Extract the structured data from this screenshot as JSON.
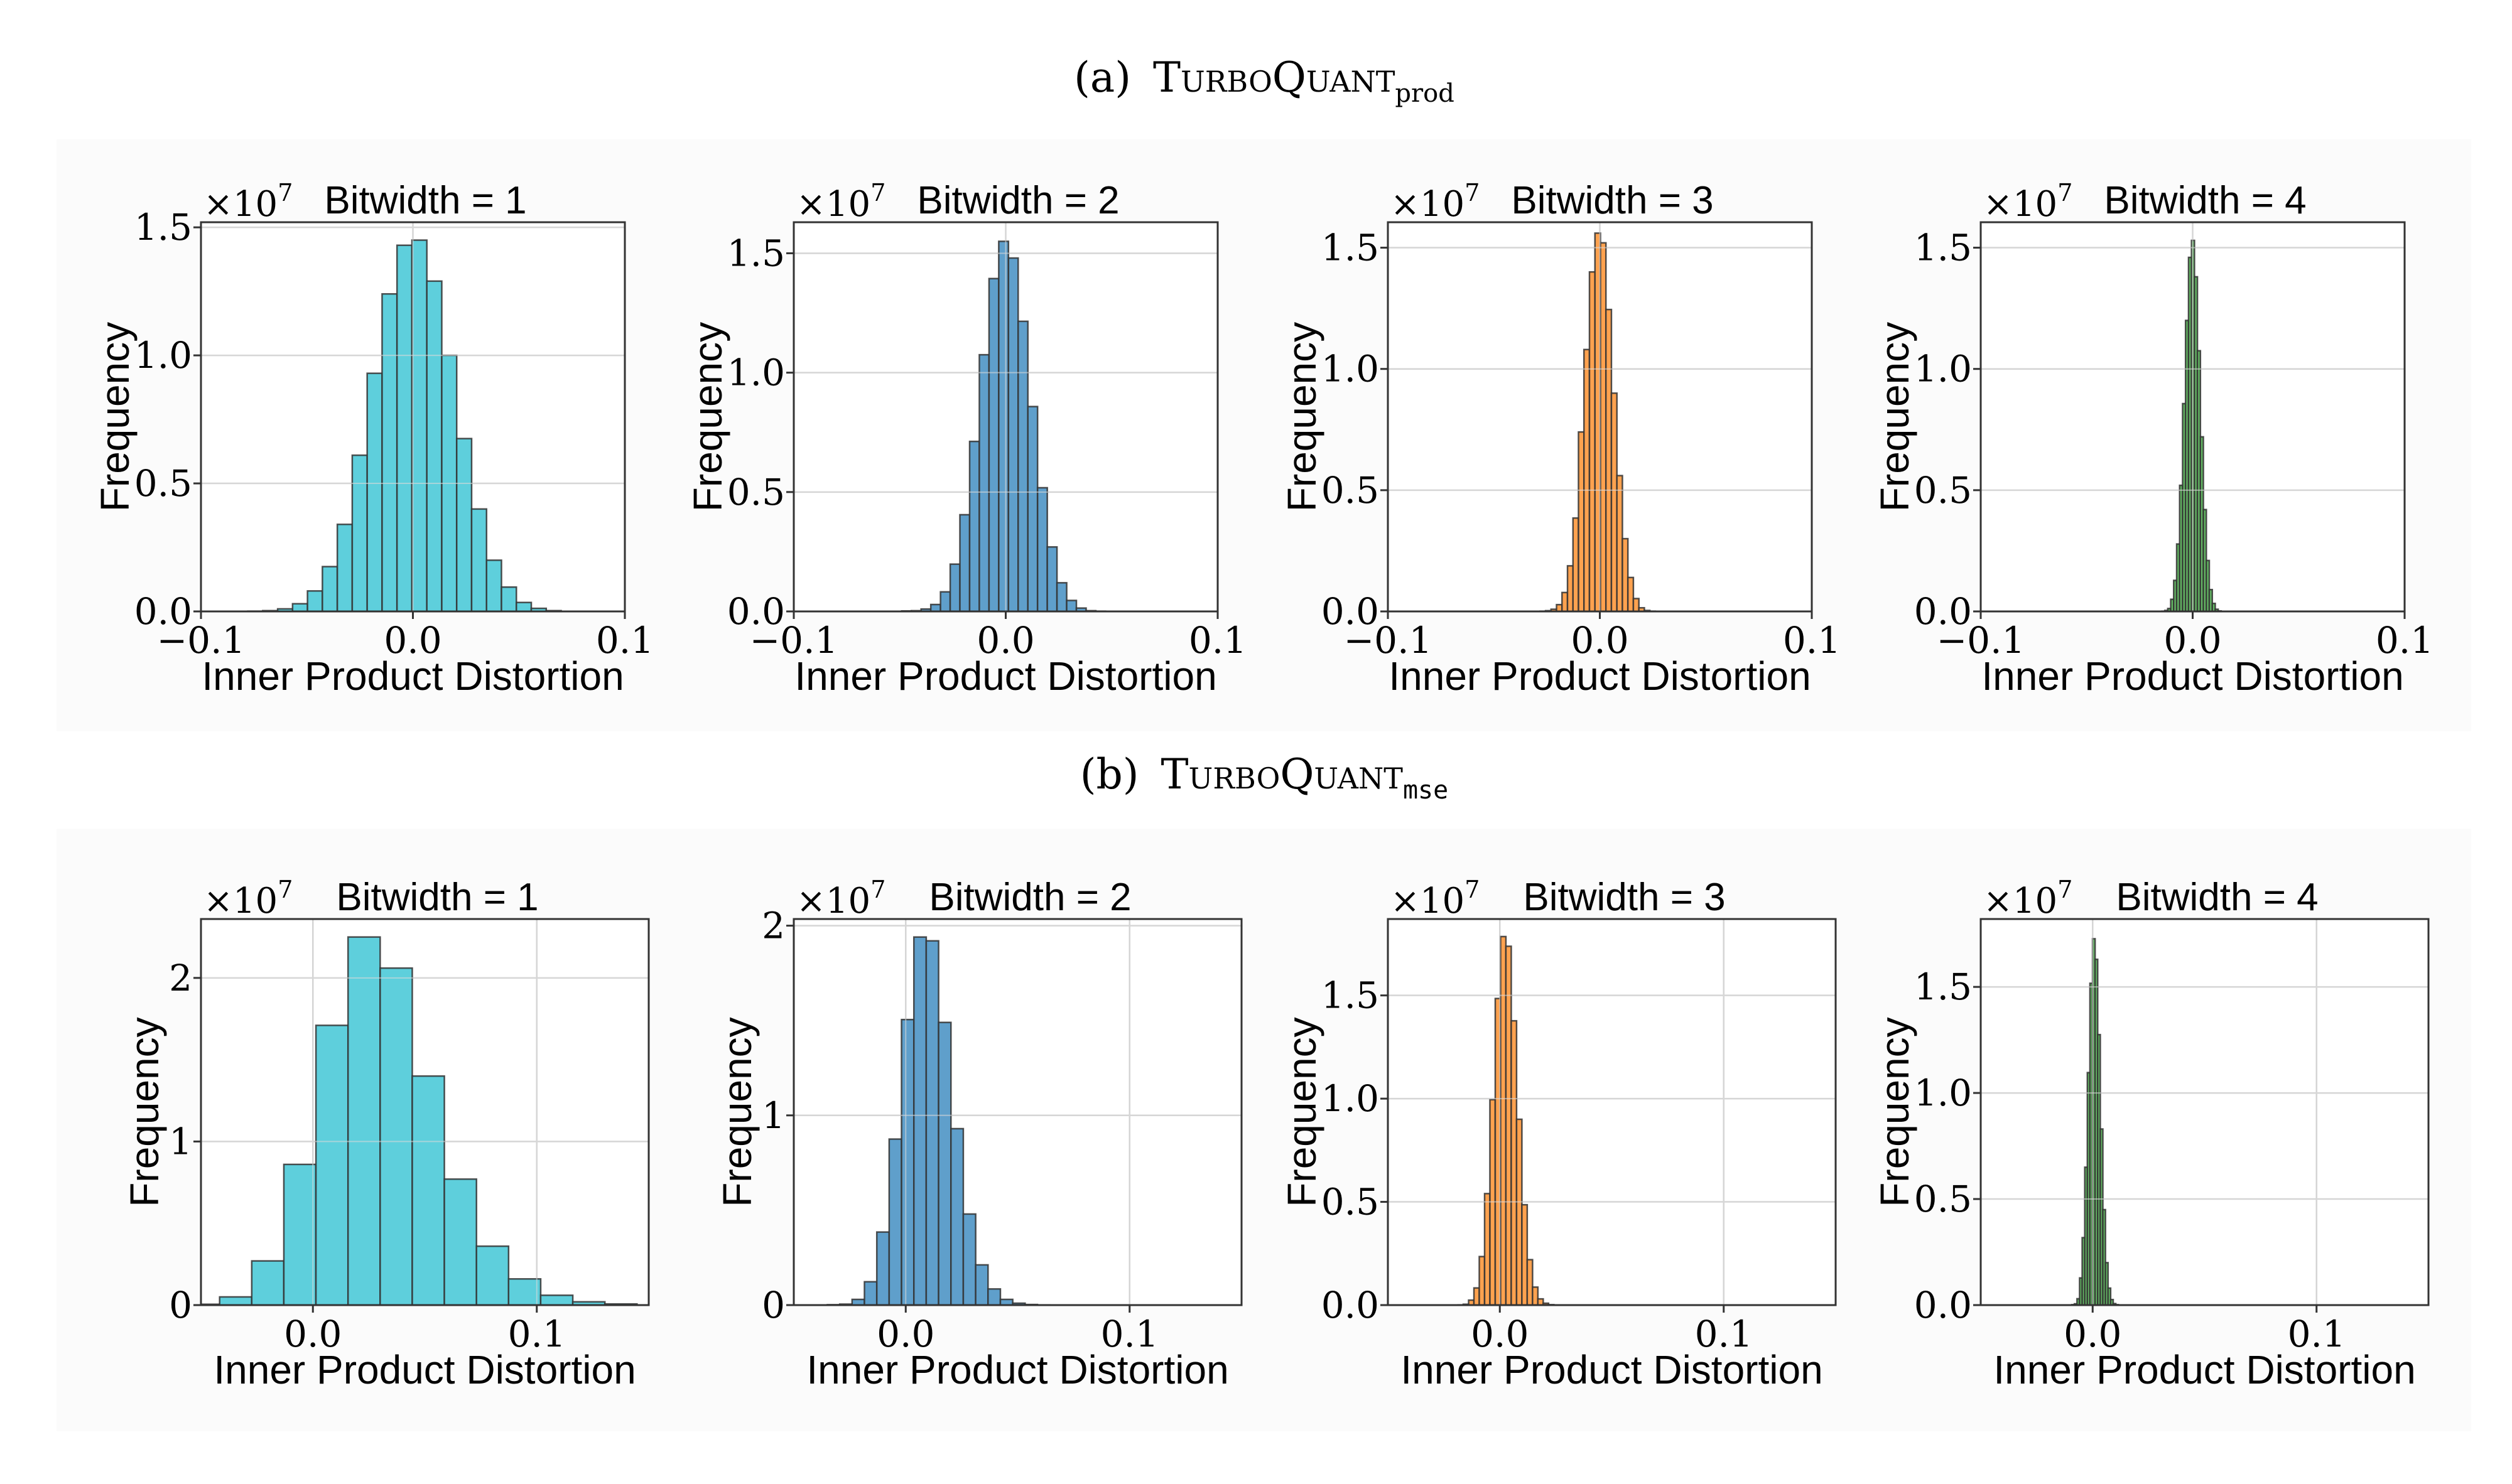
{
  "figure": {
    "sections": [
      {
        "label": "(a)",
        "name": "TurboQuant",
        "subscript": "prod"
      },
      {
        "label": "(b)",
        "name": "TurboQuant",
        "subscript": "mse"
      }
    ]
  },
  "colors": {
    "cyan": "#5ecfdc",
    "blue": "#5f9fcb",
    "orange": "#ffa24f",
    "green": "#66bb66",
    "grid": "#d2d2d2",
    "panel_bg": "#fbfbfb"
  },
  "chart_data": [
    {
      "type": "bar",
      "section": 0,
      "title": "Bitwidth = 1",
      "offset_base": "×10",
      "offset_exp": "7",
      "xlabel": "Inner Product Distortion",
      "ylabel": "Frequency",
      "color": "#5ecfdc",
      "xlim": [
        -0.1,
        0.1
      ],
      "ylim": [
        0,
        1.52
      ],
      "grid": true,
      "xticks": [
        {
          "v": -0.1,
          "label": "−0.1"
        },
        {
          "v": 0.0,
          "label": "0.0"
        },
        {
          "v": 0.1,
          "label": "0.1"
        }
      ],
      "yticks": [
        {
          "v": 0,
          "label": "0.0"
        },
        {
          "v": 0.5,
          "label": "0.5"
        },
        {
          "v": 1.0,
          "label": "1.0"
        },
        {
          "v": 1.5,
          "label": "1.5"
        }
      ],
      "bin_start": -0.0779,
      "bin_width": 0.00704,
      "values": [
        0.001,
        0.003,
        0.01,
        0.03,
        0.08,
        0.175,
        0.34,
        0.61,
        0.93,
        1.24,
        1.43,
        1.45,
        1.29,
        1.0,
        0.675,
        0.4,
        0.2,
        0.095,
        0.035,
        0.012,
        0.003
      ]
    },
    {
      "type": "bar",
      "section": 0,
      "title": "Bitwidth = 2",
      "offset_base": "×10",
      "offset_exp": "7",
      "xlabel": "Inner Product Distortion",
      "ylabel": "Frequency",
      "color": "#5f9fcb",
      "xlim": [
        -0.1,
        0.1
      ],
      "ylim": [
        0,
        1.63
      ],
      "grid": true,
      "xticks": [
        {
          "v": -0.1,
          "label": "−0.1"
        },
        {
          "v": 0.0,
          "label": "0.0"
        },
        {
          "v": 0.1,
          "label": "0.1"
        }
      ],
      "yticks": [
        {
          "v": 0,
          "label": "0.0"
        },
        {
          "v": 0.5,
          "label": "0.5"
        },
        {
          "v": 1.0,
          "label": "1.0"
        },
        {
          "v": 1.5,
          "label": "1.5"
        }
      ],
      "bin_start": -0.0491,
      "bin_width": 0.00458,
      "values": [
        0.002,
        0.003,
        0.01,
        0.029,
        0.082,
        0.198,
        0.405,
        0.712,
        1.075,
        1.394,
        1.55,
        1.48,
        1.215,
        0.858,
        0.518,
        0.27,
        0.12,
        0.046,
        0.014,
        0.003,
        0.001
      ]
    },
    {
      "type": "bar",
      "section": 0,
      "title": "Bitwidth = 3",
      "offset_base": "×10",
      "offset_exp": "7",
      "xlabel": "Inner Product Distortion",
      "ylabel": "Frequency",
      "color": "#ffa24f",
      "xlim": [
        -0.1,
        0.1
      ],
      "ylim": [
        0,
        1.605
      ],
      "grid": true,
      "xticks": [
        {
          "v": -0.1,
          "label": "−0.1"
        },
        {
          "v": 0.0,
          "label": "0.0"
        },
        {
          "v": 0.1,
          "label": "0.1"
        }
      ],
      "yticks": [
        {
          "v": 0,
          "label": "0.0"
        },
        {
          "v": 0.5,
          "label": "0.5"
        },
        {
          "v": 1.0,
          "label": "1.0"
        },
        {
          "v": 1.5,
          "label": "1.5"
        }
      ],
      "bin_start": -0.0282,
      "bin_width": 0.00259,
      "values": [
        0.001,
        0.003,
        0.009,
        0.028,
        0.078,
        0.188,
        0.385,
        0.74,
        1.08,
        1.4,
        1.56,
        1.52,
        1.245,
        0.9,
        0.56,
        0.3,
        0.14,
        0.053,
        0.015,
        0.004,
        0.001
      ]
    },
    {
      "type": "bar",
      "section": 0,
      "title": "Bitwidth = 4",
      "offset_base": "×10",
      "offset_exp": "7",
      "xlabel": "Inner Product Distortion",
      "ylabel": "Frequency",
      "color": "#66bb66",
      "xlim": [
        -0.1,
        0.1
      ],
      "ylim": [
        0,
        1.605
      ],
      "grid": true,
      "xticks": [
        {
          "v": -0.1,
          "label": "−0.1"
        },
        {
          "v": 0.0,
          "label": "0.0"
        },
        {
          "v": 0.1,
          "label": "0.1"
        }
      ],
      "yticks": [
        {
          "v": 0,
          "label": "0.0"
        },
        {
          "v": 0.5,
          "label": "0.5"
        },
        {
          "v": 1.0,
          "label": "1.0"
        },
        {
          "v": 1.5,
          "label": "1.5"
        }
      ],
      "bin_start": -0.01455,
      "bin_width": 0.0014,
      "values": [
        0.001,
        0.004,
        0.012,
        0.05,
        0.128,
        0.278,
        0.52,
        0.857,
        1.2,
        1.46,
        1.53,
        1.38,
        1.075,
        0.72,
        0.42,
        0.21,
        0.09,
        0.033,
        0.009,
        0.002
      ]
    },
    {
      "type": "bar",
      "section": 1,
      "title": "Bitwidth = 1",
      "offset_base": "×10",
      "offset_exp": "7",
      "xlabel": "Inner Product Distortion",
      "ylabel": "Frequency",
      "color": "#5ecfdc",
      "xlim": [
        -0.05,
        0.15
      ],
      "ylim": [
        0,
        2.36
      ],
      "grid": true,
      "xticks": [
        {
          "v": 0.0,
          "label": "0.0"
        },
        {
          "v": 0.1,
          "label": "0.1"
        }
      ],
      "yticks": [
        {
          "v": 0,
          "label": "0"
        },
        {
          "v": 1,
          "label": "1"
        },
        {
          "v": 2,
          "label": "2"
        }
      ],
      "bin_start": -0.056,
      "bin_width": 0.01434,
      "values": [
        0.005,
        0.05,
        0.27,
        0.86,
        1.71,
        2.25,
        2.06,
        1.4,
        0.77,
        0.36,
        0.16,
        0.06,
        0.02,
        0.007
      ]
    },
    {
      "type": "bar",
      "section": 1,
      "title": "Bitwidth = 2",
      "offset_base": "×10",
      "offset_exp": "7",
      "xlabel": "Inner Product Distortion",
      "ylabel": "Frequency",
      "color": "#5f9fcb",
      "xlim": [
        -0.05,
        0.15
      ],
      "ylim": [
        0,
        2.035
      ],
      "grid": true,
      "xticks": [
        {
          "v": 0.0,
          "label": "0.0"
        },
        {
          "v": 0.1,
          "label": "0.1"
        }
      ],
      "yticks": [
        {
          "v": 0,
          "label": "0"
        },
        {
          "v": 1,
          "label": "1"
        },
        {
          "v": 2,
          "label": "2"
        }
      ],
      "bin_start": -0.035,
      "bin_width": 0.00552,
      "values": [
        0.002,
        0.005,
        0.03,
        0.123,
        0.385,
        0.875,
        1.505,
        1.94,
        1.92,
        1.49,
        0.93,
        0.48,
        0.212,
        0.085,
        0.03,
        0.01,
        0.003,
        0.001
      ]
    },
    {
      "type": "bar",
      "section": 1,
      "title": "Bitwidth = 3",
      "offset_base": "×10",
      "offset_exp": "7",
      "xlabel": "Inner Product Distortion",
      "ylabel": "Frequency",
      "color": "#ffa24f",
      "xlim": [
        -0.05,
        0.15
      ],
      "ylim": [
        0,
        1.87
      ],
      "grid": true,
      "xticks": [
        {
          "v": 0.0,
          "label": "0.0"
        },
        {
          "v": 0.1,
          "label": "0.1"
        }
      ],
      "yticks": [
        {
          "v": 0,
          "label": "0.0"
        },
        {
          "v": 0.5,
          "label": "0.5"
        },
        {
          "v": 1.0,
          "label": "1.0"
        },
        {
          "v": 1.5,
          "label": "1.5"
        }
      ],
      "bin_start": -0.0187,
      "bin_width": 0.00238,
      "values": [
        0.001,
        0.004,
        0.024,
        0.083,
        0.235,
        0.54,
        0.995,
        1.485,
        1.785,
        1.738,
        1.377,
        0.9,
        0.486,
        0.22,
        0.087,
        0.03,
        0.009,
        0.002
      ]
    },
    {
      "type": "bar",
      "section": 1,
      "title": "Bitwidth = 4",
      "offset_base": "×10",
      "offset_exp": "7",
      "xlabel": "Inner Product Distortion",
      "ylabel": "Frequency",
      "color": "#66bb66",
      "xlim": [
        -0.05,
        0.15
      ],
      "ylim": [
        0,
        1.82
      ],
      "grid": true,
      "xticks": [
        {
          "v": 0.0,
          "label": "0.0"
        },
        {
          "v": 0.1,
          "label": "0.1"
        }
      ],
      "yticks": [
        {
          "v": 0,
          "label": "0.0"
        },
        {
          "v": 0.5,
          "label": "0.5"
        },
        {
          "v": 1.0,
          "label": "1.0"
        },
        {
          "v": 1.5,
          "label": "1.5"
        }
      ],
      "bin_start": -0.0093,
      "bin_width": 0.001155,
      "values": [
        0.002,
        0.006,
        0.03,
        0.128,
        0.318,
        0.65,
        1.096,
        1.517,
        1.727,
        1.63,
        1.275,
        0.83,
        0.45,
        0.2,
        0.08,
        0.026,
        0.007,
        0.002
      ]
    }
  ]
}
